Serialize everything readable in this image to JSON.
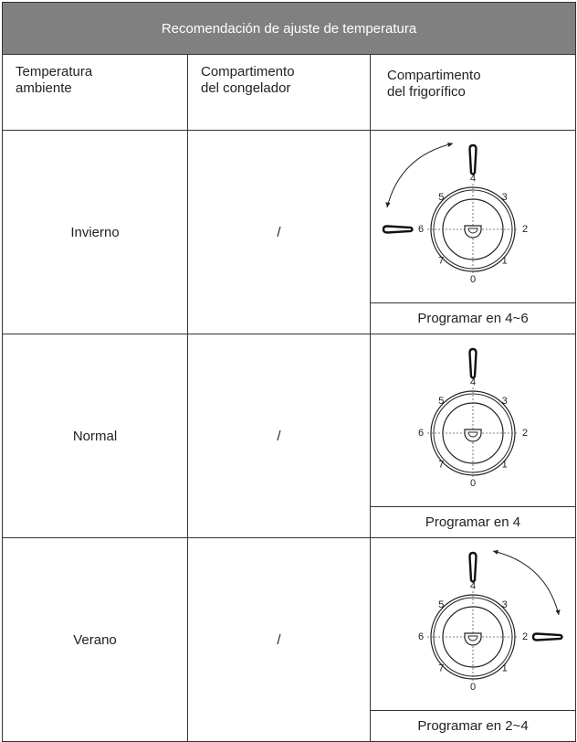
{
  "table": {
    "title": "Recomendación de ajuste de temperatura",
    "headers": [
      "Temperatura\nambiente",
      "Compartimento\ndel congelador",
      "Compartimento\ndel frigorífico"
    ],
    "rows": [
      {
        "season": "Invierno",
        "freezer": "/",
        "caption": "Programar en 4~6"
      },
      {
        "season": "Normal",
        "freezer": "/",
        "caption": "Programar en 4"
      },
      {
        "season": "Verano",
        "freezer": "/",
        "caption": "Programar en 2~4"
      }
    ]
  },
  "dial": {
    "labels": [
      "0",
      "1",
      "2",
      "3",
      "4",
      "5",
      "6",
      "7"
    ]
  }
}
